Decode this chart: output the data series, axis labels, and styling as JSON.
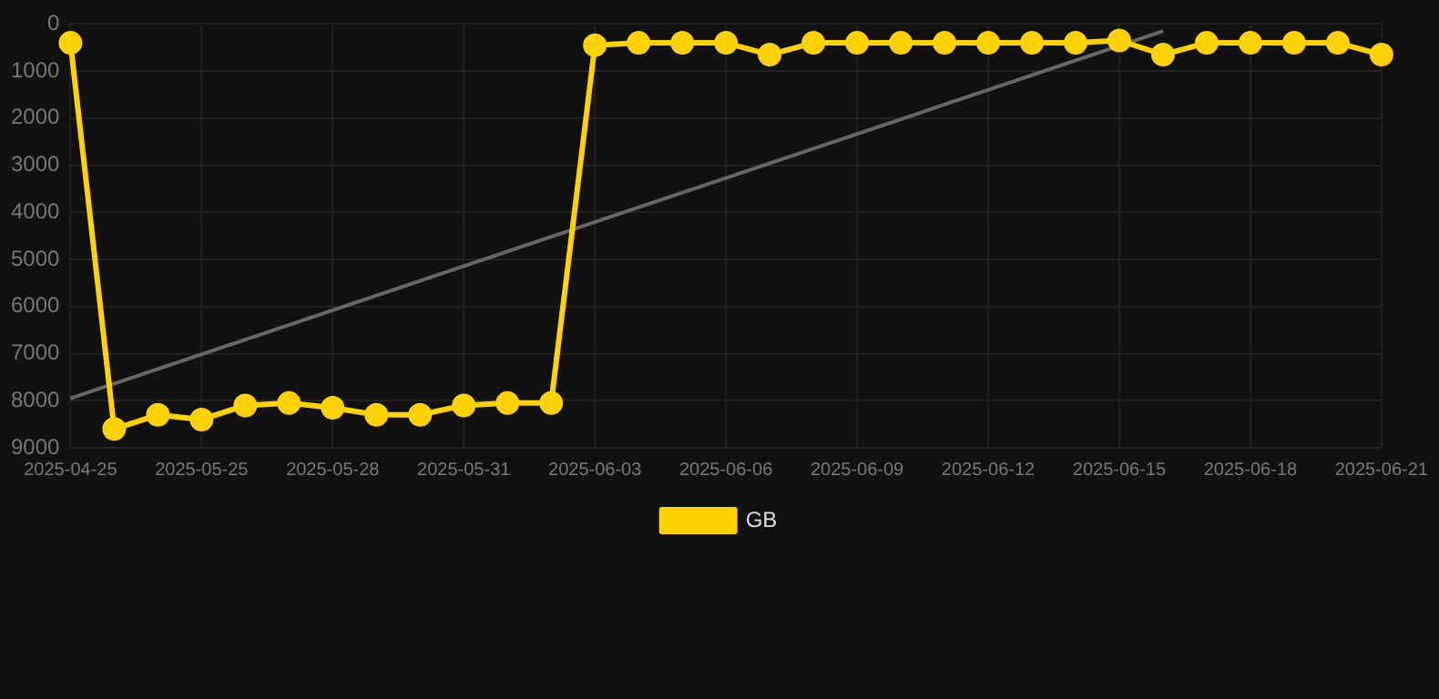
{
  "chart_data": {
    "type": "line",
    "categories": [
      "2025-04-25",
      null,
      null,
      "2025-05-25",
      null,
      null,
      "2025-05-28",
      null,
      null,
      "2025-05-31",
      null,
      null,
      "2025-06-03",
      null,
      null,
      "2025-06-06",
      null,
      null,
      "2025-06-09",
      null,
      null,
      "2025-06-12",
      null,
      null,
      "2025-06-15",
      null,
      null,
      "2025-06-18",
      null,
      null,
      "2025-06-21"
    ],
    "series": [
      {
        "name": "GB",
        "color": "#ffd200",
        "marker": "circle",
        "values": [
          400,
          8600,
          8300,
          8400,
          8100,
          8050,
          8150,
          8300,
          8300,
          8100,
          8050,
          8050,
          450,
          400,
          400,
          400,
          650,
          400,
          400,
          400,
          400,
          400,
          400,
          400,
          350,
          650,
          400,
          400,
          400,
          400,
          650
        ]
      },
      {
        "type": "line",
        "color": "#666666",
        "marker": "none",
        "values": [
          7950,
          null,
          null,
          null,
          null,
          null,
          null,
          null,
          null,
          null,
          null,
          null,
          null,
          null,
          null,
          null,
          null,
          null,
          null,
          null,
          null,
          null,
          null,
          null,
          null,
          150,
          null,
          null,
          null,
          null,
          null
        ]
      }
    ],
    "ylim": [
      9000,
      0
    ],
    "yticks": [
      0,
      1000,
      2000,
      3000,
      4000,
      5000,
      6000,
      7000,
      8000,
      9000
    ],
    "grid": true,
    "legend": "bottom"
  }
}
